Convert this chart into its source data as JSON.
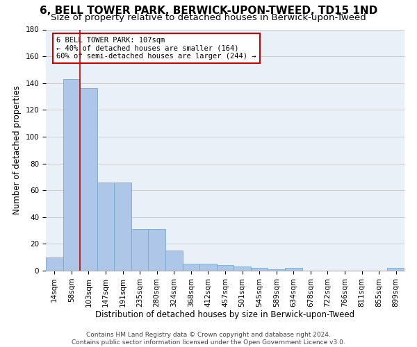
{
  "title": "6, BELL TOWER PARK, BERWICK-UPON-TWEED, TD15 1ND",
  "subtitle": "Size of property relative to detached houses in Berwick-upon-Tweed",
  "xlabel": "Distribution of detached houses by size in Berwick-upon-Tweed",
  "ylabel": "Number of detached properties",
  "categories": [
    "14sqm",
    "58sqm",
    "103sqm",
    "147sqm",
    "191sqm",
    "235sqm",
    "280sqm",
    "324sqm",
    "368sqm",
    "412sqm",
    "457sqm",
    "501sqm",
    "545sqm",
    "589sqm",
    "634sqm",
    "678sqm",
    "722sqm",
    "766sqm",
    "811sqm",
    "855sqm",
    "899sqm"
  ],
  "values": [
    10,
    143,
    136,
    66,
    66,
    31,
    31,
    15,
    5,
    5,
    4,
    3,
    2,
    1,
    2,
    0,
    0,
    0,
    0,
    0,
    2
  ],
  "bar_color": "#aec6e8",
  "bar_edge_color": "#7aaad0",
  "vline_x_index": 1.5,
  "vline_color": "#cc0000",
  "annotation_text": "6 BELL TOWER PARK: 107sqm\n← 40% of detached houses are smaller (164)\n60% of semi-detached houses are larger (244) →",
  "annotation_box_color": "#ffffff",
  "annotation_box_edge_color": "#cc0000",
  "ylim": [
    0,
    180
  ],
  "yticks": [
    0,
    20,
    40,
    60,
    80,
    100,
    120,
    140,
    160,
    180
  ],
  "grid_color": "#cccccc",
  "bg_color": "#eaf0f8",
  "footer": "Contains HM Land Registry data © Crown copyright and database right 2024.\nContains public sector information licensed under the Open Government Licence v3.0.",
  "title_fontsize": 11,
  "subtitle_fontsize": 9.5,
  "xlabel_fontsize": 8.5,
  "ylabel_fontsize": 8.5,
  "tick_fontsize": 7.5,
  "footer_fontsize": 6.5,
  "ann_fontsize": 7.5
}
